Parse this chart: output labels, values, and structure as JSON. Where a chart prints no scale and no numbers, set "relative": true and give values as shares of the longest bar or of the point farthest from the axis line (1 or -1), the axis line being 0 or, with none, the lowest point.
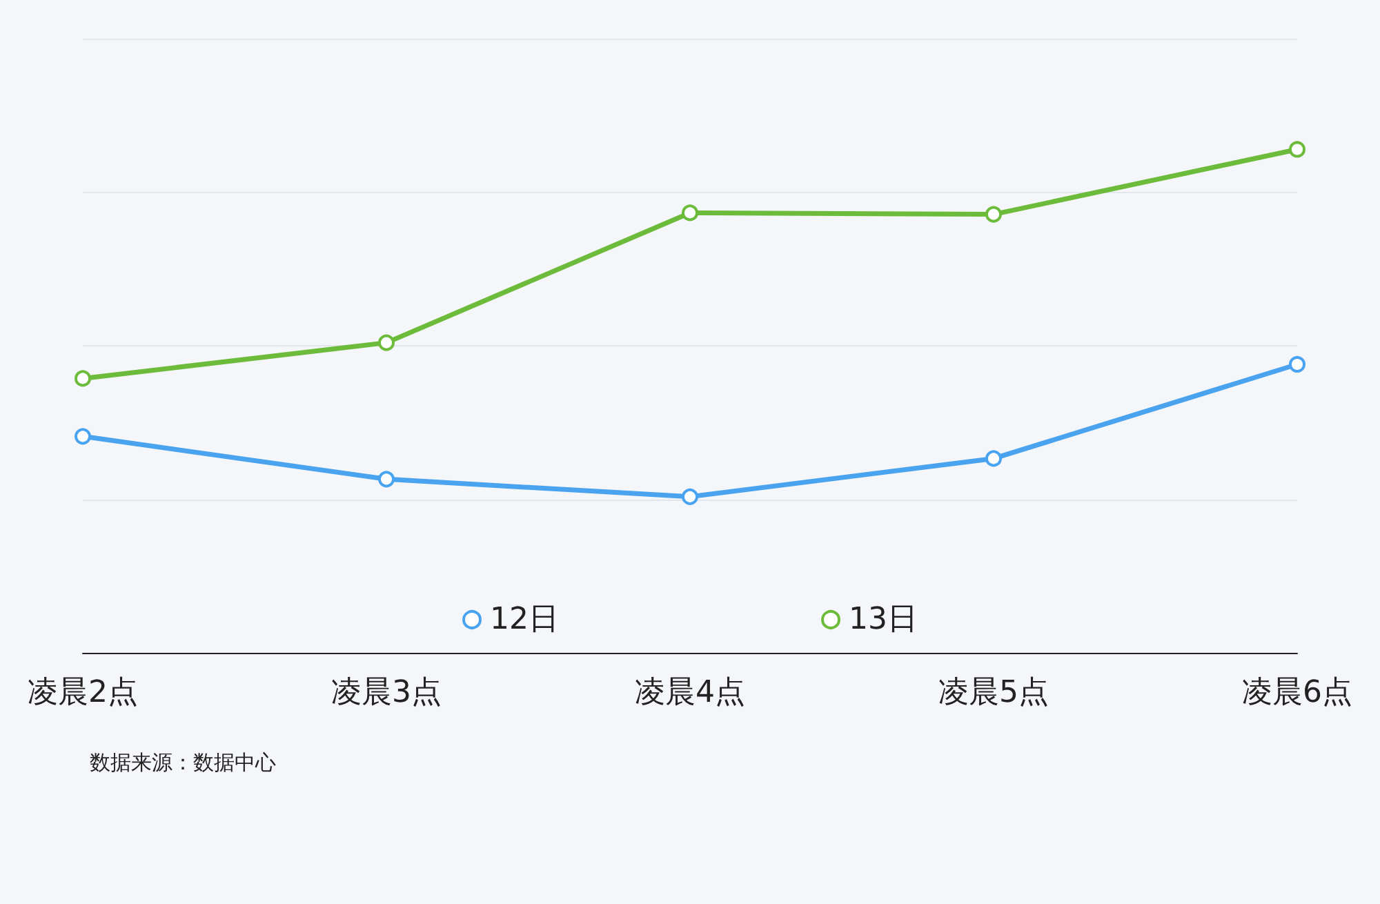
{
  "chart_data": {
    "type": "line",
    "relative": true,
    "categories": [
      "凌晨2点",
      "凌晨3点",
      "凌晨4点",
      "凌晨5点",
      "凌晨6点"
    ],
    "series": [
      {
        "name": "12日",
        "color": "#4aa3ef",
        "values": [
          0.43,
          0.345,
          0.31,
          0.386,
          0.573
        ]
      },
      {
        "name": "13日",
        "color": "#6cbb3a",
        "values": [
          0.545,
          0.616,
          0.874,
          0.871,
          1
        ]
      }
    ],
    "grid": "y",
    "legend": "bottom",
    "marker": "circle",
    "line_style": "solid",
    "annotations": [
      "数据来源：数据中心"
    ]
  }
}
